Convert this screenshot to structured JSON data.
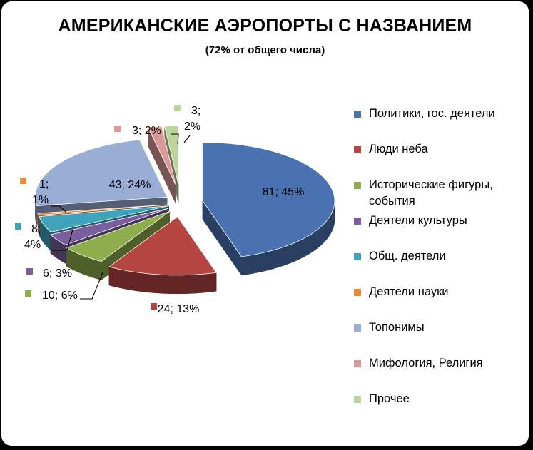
{
  "colors": {
    "politics": "#4A72B0",
    "aviators": "#B54541",
    "historic": "#8EAD4C",
    "culture": "#7B5E9D",
    "public": "#3FA3BC",
    "science": "#F08A36",
    "toponyms": "#99ADD5",
    "mythology": "#DB9A98",
    "other": "#BCD59B"
  },
  "chart_data": {
    "type": "pie",
    "title": "АМЕРИКАНСКИЕ АЭРОПОРТЫ С НАЗВАНИЕМ",
    "subtitle": "(72% от общего числа)",
    "style": "3d-exploded",
    "legend_position": "right",
    "categories": [
      "Политики, гос. деятели",
      "Люди неба",
      "Исторические фигуры, события",
      "Деятели культуры",
      "Общ. деятели",
      "Деятели науки",
      "Топонимы",
      "Мифология, Религия",
      "Прочее"
    ],
    "values": [
      81,
      24,
      10,
      6,
      8,
      1,
      43,
      3,
      3
    ],
    "percents": [
      45,
      13,
      6,
      3,
      4,
      1,
      24,
      2,
      2
    ],
    "data_labels": [
      "81; 45%",
      "24; 13%",
      "10; 6%",
      "6; 3%",
      "8; 4%",
      "1; 1%",
      "43; 24%",
      "3; 2%",
      "3; 2%"
    ]
  }
}
